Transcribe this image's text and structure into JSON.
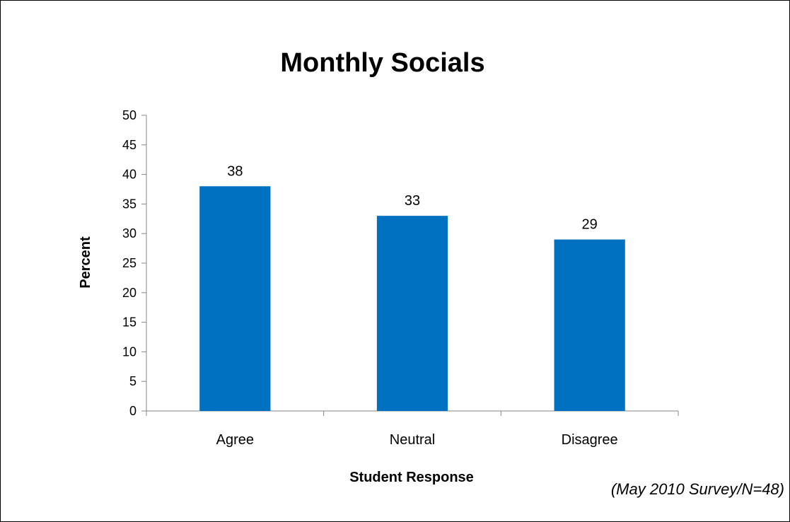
{
  "chart_data": {
    "type": "bar",
    "title": "Monthly Socials",
    "xlabel": "Student Response",
    "ylabel": "Percent",
    "categories": [
      "Agree",
      "Neutral",
      "Disagree"
    ],
    "values": [
      38,
      33,
      29
    ],
    "data_labels": [
      "38",
      "33",
      "29"
    ],
    "ylim": [
      0,
      50
    ],
    "yticks": [
      0,
      5,
      10,
      15,
      20,
      25,
      30,
      35,
      40,
      45,
      50
    ],
    "grid": false,
    "legend": "none",
    "bar_color": "#0070C0",
    "annotation": "(May 2010 Survey/N=48)"
  }
}
